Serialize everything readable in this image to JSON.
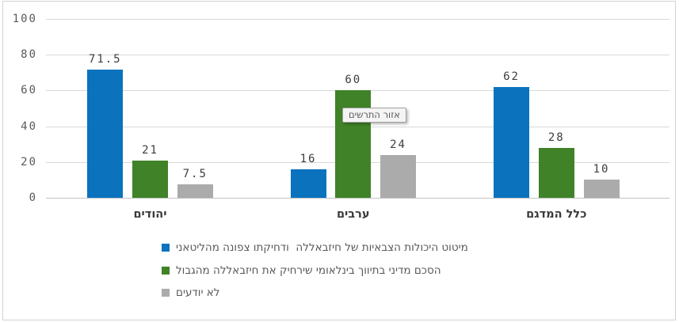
{
  "tooltip": {
    "text": "אזור התרשים"
  },
  "chart_data": {
    "type": "bar",
    "title": "",
    "xlabel": "",
    "ylabel": "",
    "categories": [
      "יהודים",
      "ערבים",
      "כלל המדגם"
    ],
    "series": [
      {
        "name": "מיטוט היכולות הצבאיות של חיזבאללה  ודחיקתו צפונה מהליטאני",
        "color": "#0b72be",
        "values": [
          71.5,
          16,
          62
        ]
      },
      {
        "name": "הסכם מדיני בתיווך בינלאומי שירחיק את חיזבאללה מהגבול",
        "color": "#3f8227",
        "values": [
          21,
          60,
          28
        ]
      },
      {
        "name": "לא יודעים",
        "color": "#ababab",
        "values": [
          7.5,
          24,
          10
        ]
      }
    ],
    "yticks": [
      0,
      20,
      40,
      60,
      80,
      100
    ],
    "ylim": [
      0,
      100
    ],
    "grid": true,
    "legend_position": "bottom-left",
    "value_labels_shown": true
  }
}
